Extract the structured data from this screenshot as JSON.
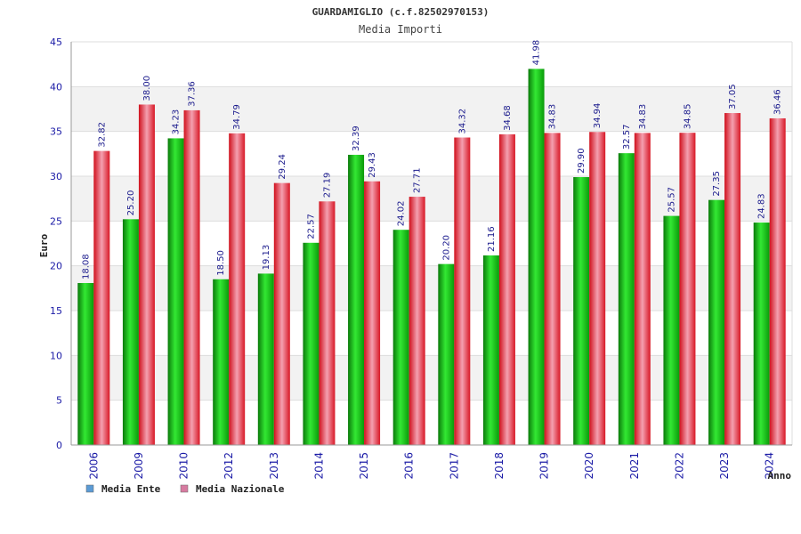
{
  "chart_data": {
    "type": "bar",
    "title": "GUARDAMIGLIO (c.f.82502970153)",
    "subtitle": "Media Importi",
    "xlabel": "Anno",
    "ylabel": "Euro",
    "ylim": [
      0,
      45
    ],
    "yticks": [
      0,
      5,
      10,
      15,
      20,
      25,
      30,
      35,
      40,
      45
    ],
    "grid": true,
    "legend_position": "bottom-left",
    "categories": [
      "2006",
      "2009",
      "2010",
      "2012",
      "2013",
      "2014",
      "2015",
      "2016",
      "2017",
      "2018",
      "2019",
      "2020",
      "2021",
      "2022",
      "2023",
      "2024"
    ],
    "series": [
      {
        "name": "Media Ente",
        "color": "#1ab01a",
        "legend_color": "#5b9bd5",
        "values": [
          18.08,
          25.2,
          34.23,
          18.5,
          19.13,
          22.57,
          32.39,
          24.02,
          20.2,
          21.16,
          41.98,
          29.9,
          32.57,
          25.57,
          27.35,
          24.83
        ],
        "labels": [
          "18.08",
          "25.20",
          "34.23",
          "18.50",
          "19.13",
          "22.57",
          "32.39",
          "24.02",
          "20.20",
          "21.16",
          "41.98",
          "29.90",
          "32.57",
          "25.57",
          "27.35",
          "24.83"
        ]
      },
      {
        "name": "Media Nazionale",
        "color": "#e8202a",
        "legend_color": "#d77ba0",
        "values": [
          32.82,
          38.0,
          37.36,
          34.79,
          29.24,
          27.19,
          29.43,
          27.71,
          34.32,
          34.68,
          34.83,
          34.94,
          34.83,
          34.85,
          37.05,
          36.46
        ],
        "labels": [
          "32.82",
          "38.00",
          "37.36",
          "34.79",
          "29.24",
          "27.19",
          "29.43",
          "27.71",
          "34.32",
          "34.68",
          "34.83",
          "34.94",
          "34.83",
          "34.85",
          "37.05",
          "36.46"
        ]
      }
    ]
  }
}
